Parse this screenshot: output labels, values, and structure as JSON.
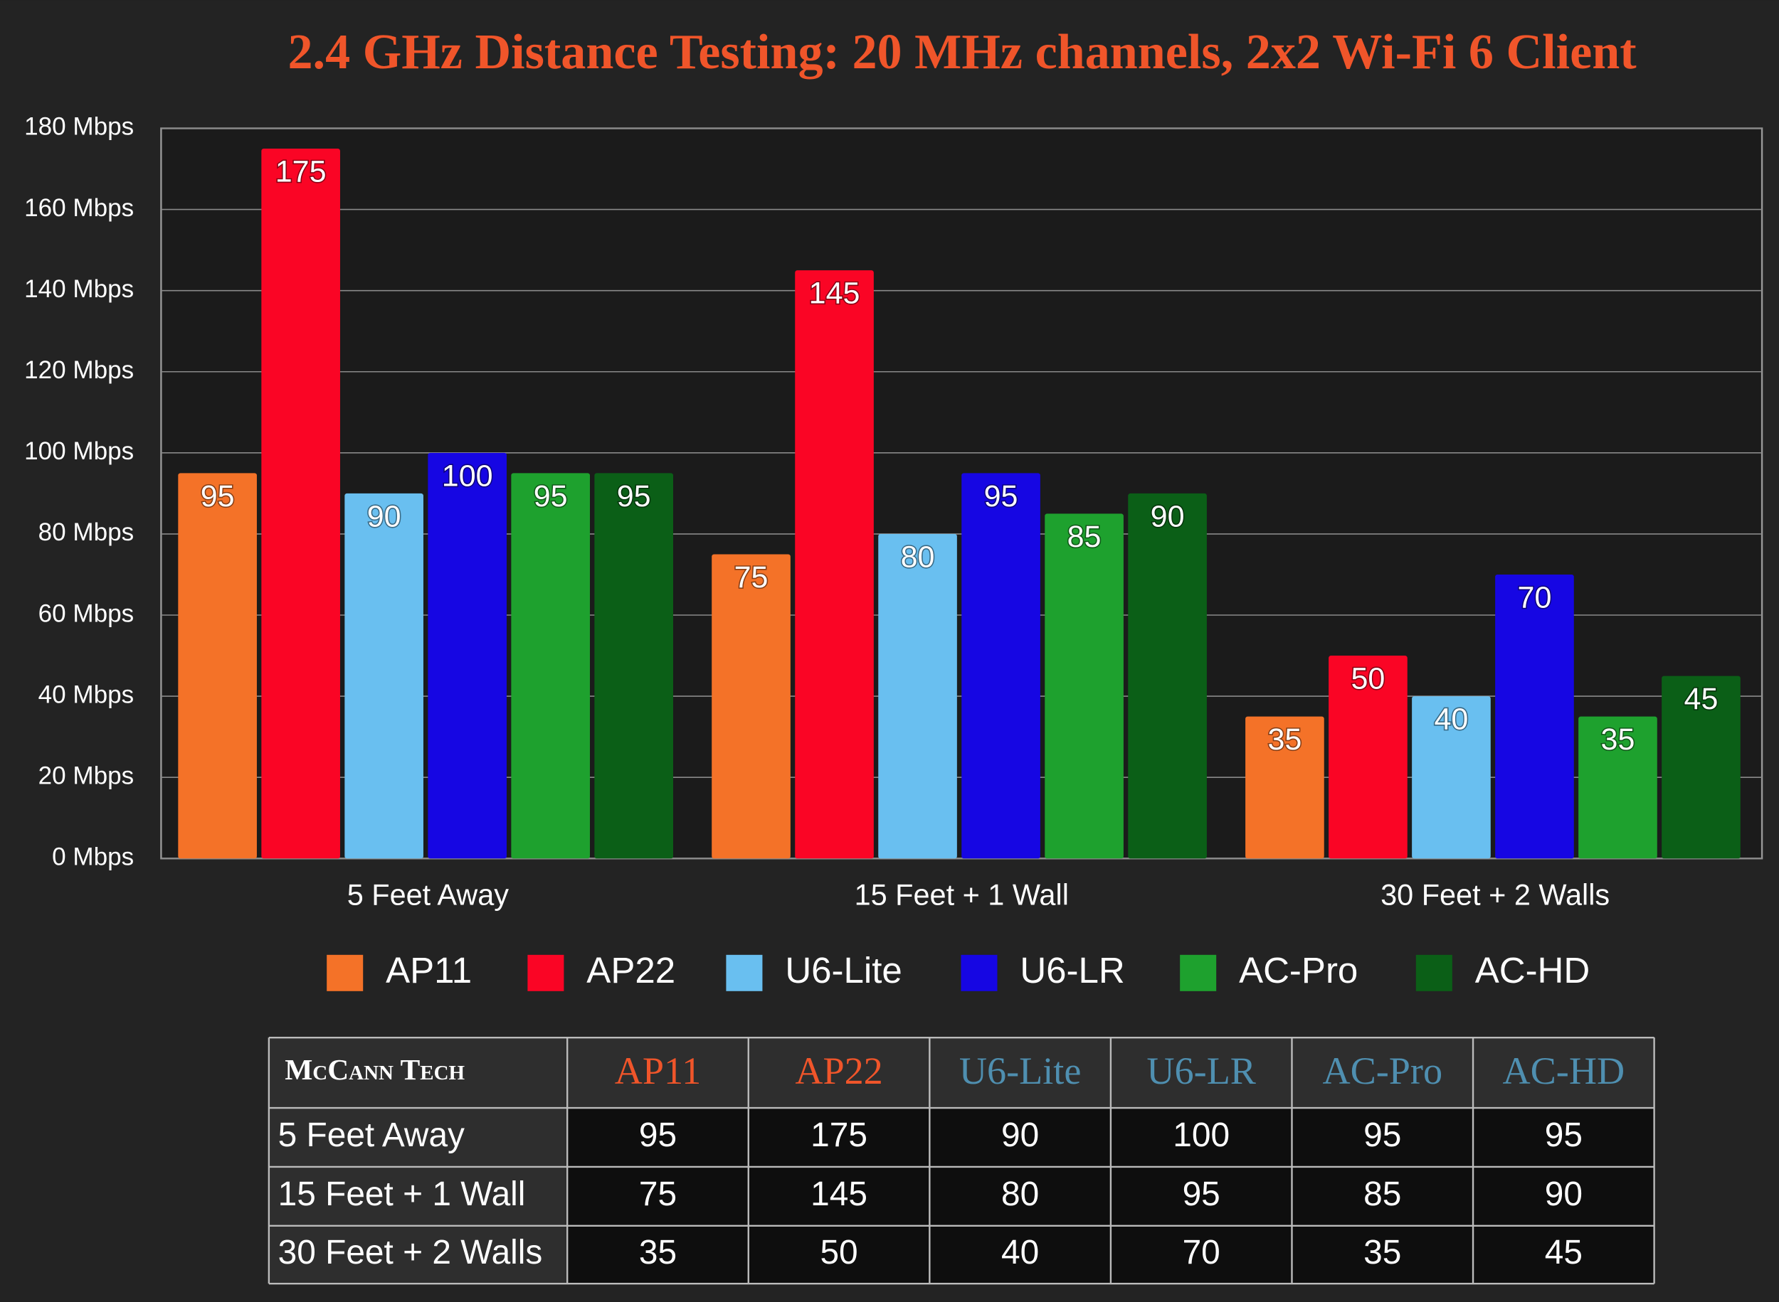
{
  "chart_data": {
    "type": "bar",
    "title": "2.4 GHz Distance Testing: 20 MHz channels, 2x2 Wi-Fi 6 Client",
    "categories": [
      "5 Feet Away",
      "15 Feet + 1 Wall",
      "30 Feet + 2 Walls"
    ],
    "series": [
      {
        "name": "AP11",
        "color": "#f47228",
        "values": [
          95,
          75,
          35
        ]
      },
      {
        "name": "AP22",
        "color": "#fa0525",
        "values": [
          175,
          145,
          50
        ]
      },
      {
        "name": "U6-Lite",
        "color": "#69bff0",
        "values": [
          90,
          80,
          40
        ]
      },
      {
        "name": "U6-LR",
        "color": "#1606e3",
        "values": [
          100,
          95,
          70
        ]
      },
      {
        "name": "AC-Pro",
        "color": "#1ea12e",
        "values": [
          95,
          85,
          35
        ]
      },
      {
        "name": "AC-HD",
        "color": "#0b5f17",
        "values": [
          95,
          90,
          45
        ]
      }
    ],
    "ylim": [
      0,
      180
    ],
    "yticks": [
      {
        "value": 0,
        "label": "0 Mbps"
      },
      {
        "value": 20,
        "label": "20 Mbps"
      },
      {
        "value": 40,
        "label": "40 Mbps"
      },
      {
        "value": 60,
        "label": "60 Mbps"
      },
      {
        "value": 80,
        "label": "80 Mbps"
      },
      {
        "value": 100,
        "label": "100 Mbps"
      },
      {
        "value": 120,
        "label": "120 Mbps"
      },
      {
        "value": 140,
        "label": "140 Mbps"
      },
      {
        "value": 160,
        "label": "160 Mbps"
      },
      {
        "value": 180,
        "label": "180 Mbps"
      }
    ],
    "grid": true,
    "legend": "bottom"
  },
  "table": {
    "brand": "McCann Tech"
  }
}
